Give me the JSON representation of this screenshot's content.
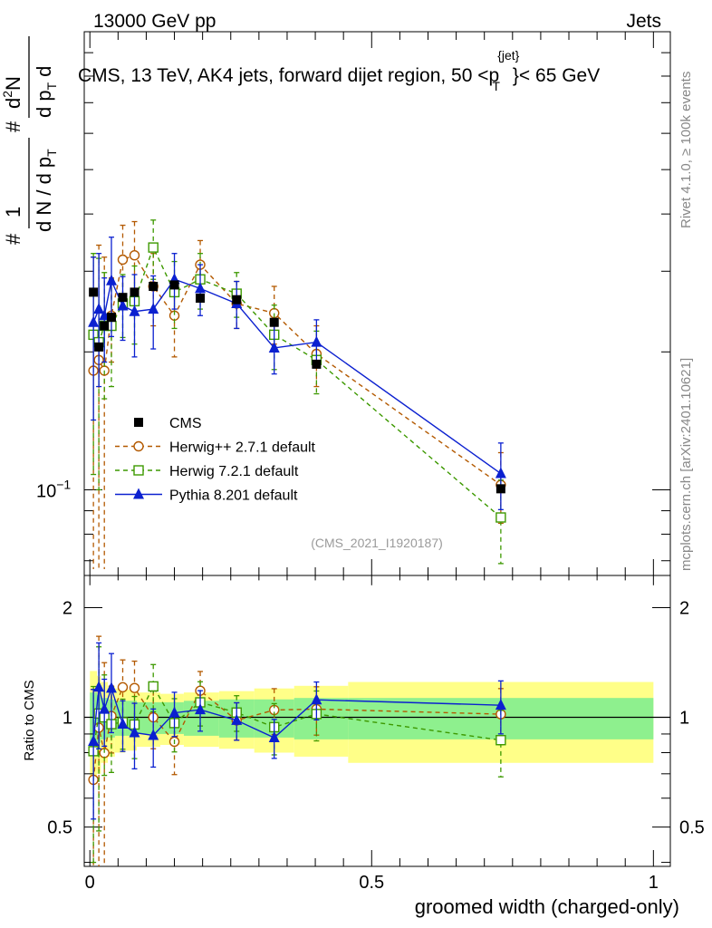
{
  "header": {
    "left": "13000 GeV pp",
    "right": "Jets"
  },
  "title": {
    "main": "CMS, 13 TeV, AK4 jets, forward dijet region, 50 <p",
    "sup": "{jet}",
    "sub": "T",
    "end": "}< 65 GeV"
  },
  "side_labels": {
    "rivet": "Rivet 4.1.0, ≥ 100k events",
    "mcplots": "mcplots.cern.ch [arXiv:2401.10621]"
  },
  "watermark": "(CMS_2021_I1920187)",
  "ylabel_top": {
    "hash_left": "#",
    "frac1_num": "1",
    "frac1_den": "d N / d p",
    "frac1_den_sub": "T",
    "hash_mid": "#",
    "frac2_num": "d",
    "frac2_num_sup": "2",
    "frac2_num_tail": "N",
    "frac2_den": "d p",
    "frac2_den_sub": "T",
    "frac2_den_tail": "d"
  },
  "ylabel_ratio": "Ratio to CMS",
  "xlabel": "groomed width (charged-only)",
  "ytick_top": {
    "base": "10",
    "exp": "−1"
  },
  "yticks_ratio": [
    "0.5",
    "1",
    "2"
  ],
  "xticks": [
    "0",
    "0.5",
    "1"
  ],
  "legend": [
    {
      "name": "CMS",
      "marker": "square-filled",
      "color": "#000000",
      "line": "none"
    },
    {
      "name": "Herwig++ 2.7.1 default",
      "marker": "circle-open",
      "color": "#b35900",
      "line": "dashed"
    },
    {
      "name": "Herwig 7.2.1 default",
      "marker": "square-open",
      "color": "#3d9900",
      "line": "dashed"
    },
    {
      "name": "Pythia 8.201 default",
      "marker": "triangle-filled",
      "color": "#0b20d0",
      "line": "solid"
    }
  ],
  "chart_data": {
    "type": "scatter",
    "x_range": [
      -0.01,
      1.03
    ],
    "y_range_top": [
      0.065,
      1.0
    ],
    "y_range_ratio": [
      0.39,
      2.45
    ],
    "y_scale": "log",
    "bin_edges": [
      0.0,
      0.0125,
      0.0194,
      0.0319,
      0.0444,
      0.0625,
      0.0833,
      0.125,
      0.1667,
      0.2292,
      0.2917,
      0.3625,
      0.4583,
      1.0
    ],
    "x": [
      0.0063,
      0.0159,
      0.0257,
      0.0382,
      0.0583,
      0.0792,
      0.1125,
      0.15,
      0.1958,
      0.2604,
      0.3271,
      0.4021,
      0.7292
    ],
    "cms_band": {
      "stat": [
        0.17,
        0.15,
        0.13,
        0.12,
        0.11,
        0.11,
        0.1,
        0.1,
        0.11,
        0.12,
        0.12,
        0.13,
        0.13
      ],
      "total": [
        0.34,
        0.3,
        0.25,
        0.22,
        0.2,
        0.19,
        0.17,
        0.16,
        0.17,
        0.18,
        0.2,
        0.22,
        0.25
      ]
    },
    "series": [
      {
        "name": "CMS",
        "values": [
          0.27,
          0.205,
          0.228,
          0.238,
          0.263,
          0.27,
          0.278,
          0.28,
          0.262,
          0.26,
          0.232,
          0.188,
          0.1005
        ],
        "errors": [
          0.004,
          0.004,
          0.004,
          0.004,
          0.004,
          0.004,
          0.004,
          0.004,
          0.004,
          0.004,
          0.004,
          0.004,
          0.003
        ]
      },
      {
        "name": "Herwig++ 2.7.1 default",
        "values": [
          0.182,
          0.192,
          0.182,
          0.24,
          0.318,
          0.325,
          0.278,
          0.24,
          0.31,
          0.255,
          0.243,
          0.198,
          0.1025
        ],
        "errors": [
          0.14,
          0.15,
          0.14,
          0.05,
          0.06,
          0.06,
          0.05,
          0.045,
          0.04,
          0.03,
          0.035,
          0.03,
          0.018
        ]
      },
      {
        "name": "Herwig 7.2.1 default",
        "values": [
          0.218,
          0.21,
          0.228,
          0.228,
          0.255,
          0.258,
          0.338,
          0.27,
          0.288,
          0.268,
          0.218,
          0.192,
          0.087
        ],
        "errors": [
          0.11,
          0.11,
          0.07,
          0.06,
          0.04,
          0.05,
          0.05,
          0.045,
          0.04,
          0.03,
          0.035,
          0.03,
          0.018
        ]
      },
      {
        "name": "Pythia 8.201 default",
        "values": [
          0.232,
          0.248,
          0.24,
          0.286,
          0.252,
          0.245,
          0.248,
          0.288,
          0.275,
          0.255,
          0.204,
          0.21,
          0.1085
        ],
        "errors": [
          0.09,
          0.08,
          0.05,
          0.07,
          0.04,
          0.05,
          0.045,
          0.04,
          0.035,
          0.03,
          0.025,
          0.025,
          0.018
        ]
      }
    ]
  }
}
